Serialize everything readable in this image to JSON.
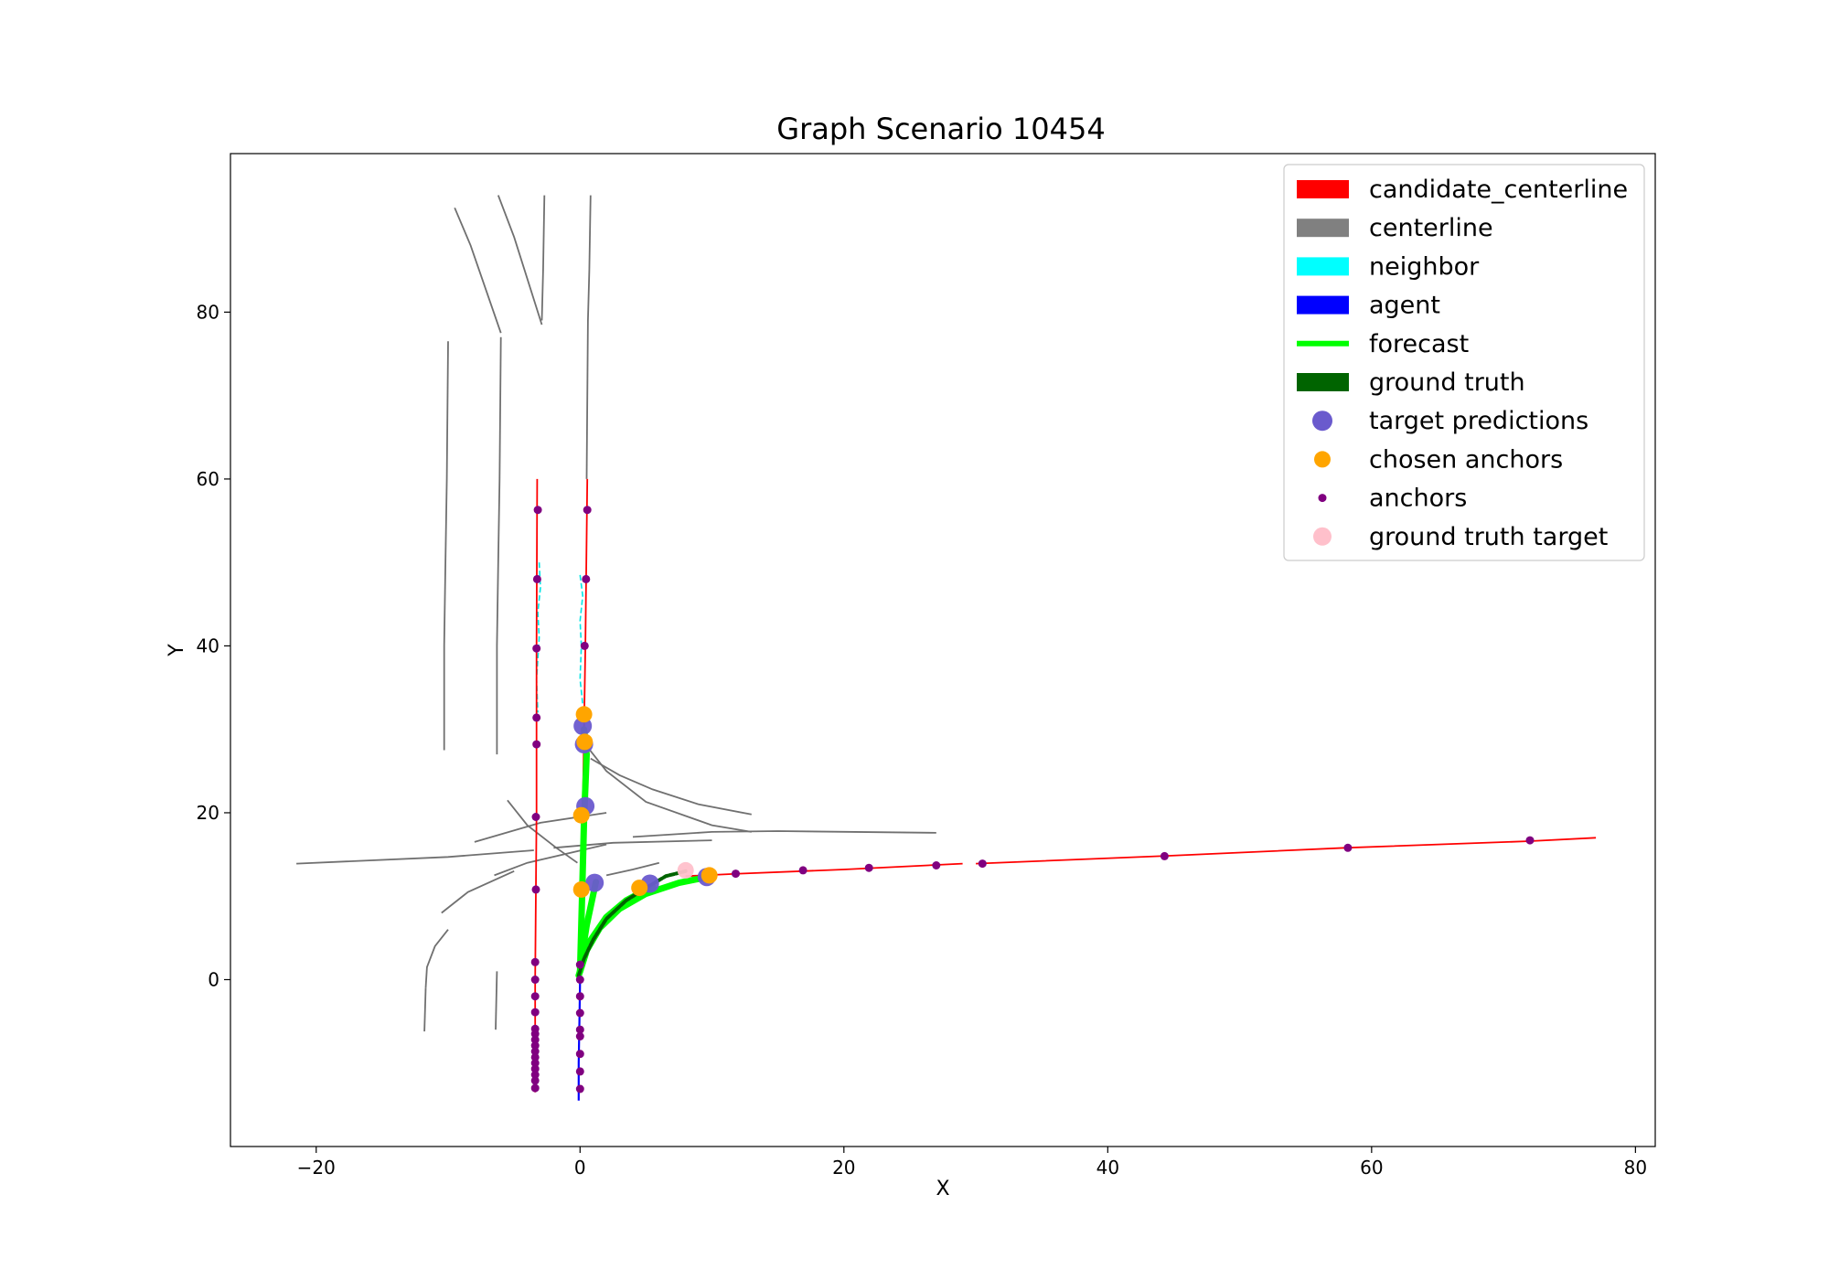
{
  "chart_data": {
    "type": "scatter",
    "title": "Graph Scenario 10454",
    "xlabel": "X",
    "ylabel": "Y",
    "xlim": [
      -26.5,
      81.5
    ],
    "ylim": [
      -20,
      99
    ],
    "xticks": [
      -20,
      0,
      20,
      40,
      60,
      80
    ],
    "yticks": [
      0,
      20,
      40,
      60,
      80
    ],
    "xtick_labels": [
      "−20",
      "0",
      "20",
      "40",
      "60",
      "80"
    ],
    "ytick_labels": [
      "0",
      "20",
      "40",
      "60",
      "80"
    ],
    "grid": false,
    "legend_position": "top-right",
    "legend": [
      {
        "label": "candidate_centerline",
        "kind": "patch",
        "color": "#ff0000"
      },
      {
        "label": "centerline",
        "kind": "patch",
        "color": "#808080"
      },
      {
        "label": "neighbor",
        "kind": "patch",
        "color": "#00ffff"
      },
      {
        "label": "agent",
        "kind": "patch",
        "color": "#0000ff"
      },
      {
        "label": "forecast",
        "kind": "line",
        "color": "#00ff00"
      },
      {
        "label": "ground truth",
        "kind": "patch",
        "color": "#006400"
      },
      {
        "label": "target predictions",
        "kind": "dot",
        "color": "#6a5acd",
        "size": 11
      },
      {
        "label": "chosen anchors",
        "kind": "dot",
        "color": "#ffa500",
        "size": 9
      },
      {
        "label": "anchors",
        "kind": "dot",
        "color": "#800080",
        "size": 4.5
      },
      {
        "label": "ground truth target",
        "kind": "dot",
        "color": "#ffc0cb",
        "size": 10
      }
    ],
    "centerlines": [
      [
        [
          -21.5,
          13.9
        ],
        [
          -10,
          14.7
        ],
        [
          -3.5,
          15.5
        ]
      ],
      [
        [
          -2,
          15.8
        ],
        [
          2.5,
          16.4
        ],
        [
          10,
          16.7
        ]
      ],
      [
        [
          4,
          17.1
        ],
        [
          10,
          17.7
        ],
        [
          15,
          17.8
        ],
        [
          27,
          17.6
        ]
      ],
      [
        [
          -8,
          16.5
        ],
        [
          -3,
          18.8
        ],
        [
          2,
          20
        ]
      ],
      [
        [
          -6.5,
          12.5
        ],
        [
          -4,
          14
        ],
        [
          2,
          16.2
        ]
      ],
      [
        [
          -10.5,
          8
        ],
        [
          -8.5,
          10.5
        ],
        [
          -5,
          13
        ]
      ],
      [
        [
          -10,
          6
        ],
        [
          -11,
          4
        ],
        [
          -11.6,
          1.5
        ],
        [
          -11.7,
          -1
        ]
      ],
      [
        [
          -11.7,
          -1
        ],
        [
          -11.8,
          -6.2
        ]
      ],
      [
        [
          -6.3,
          1
        ],
        [
          -6.4,
          -6
        ]
      ],
      [
        [
          -10,
          76.5
        ],
        [
          -10.1,
          60
        ],
        [
          -10.2,
          50
        ],
        [
          -10.3,
          40
        ],
        [
          -10.3,
          27.5
        ]
      ],
      [
        [
          -6,
          77
        ],
        [
          -6.1,
          60
        ],
        [
          -6.2,
          50
        ],
        [
          -6.3,
          40
        ],
        [
          -6.3,
          27
        ]
      ],
      [
        [
          -9.5,
          92.5
        ],
        [
          -8.3,
          88
        ],
        [
          -6,
          77.5
        ]
      ],
      [
        [
          -6.2,
          94
        ],
        [
          -5,
          89
        ],
        [
          -2.9,
          78.5
        ]
      ],
      [
        [
          -2.7,
          94
        ],
        [
          -2.8,
          85
        ],
        [
          -2.9,
          79
        ]
      ],
      [
        [
          0.8,
          94
        ],
        [
          0.7,
          85
        ],
        [
          0.6,
          79
        ],
        [
          0.5,
          60
        ]
      ],
      [
        [
          -5.5,
          21.5
        ],
        [
          -4,
          18.5
        ],
        [
          -1.8,
          15.8
        ],
        [
          -0.2,
          14
        ]
      ],
      [
        [
          0.5,
          28
        ],
        [
          2,
          25
        ],
        [
          5,
          21.3
        ],
        [
          10,
          18.5
        ],
        [
          13,
          17.7
        ]
      ],
      [
        [
          0.8,
          26.5
        ],
        [
          3,
          24.5
        ],
        [
          5.5,
          22.8
        ],
        [
          9,
          21
        ],
        [
          13,
          19.8
        ]
      ],
      [
        [
          2,
          12.5
        ],
        [
          4,
          13.2
        ],
        [
          6,
          14
        ]
      ]
    ],
    "candidate_centerlines": [
      [
        [
          -3.25,
          60
        ],
        [
          -3.3,
          40
        ],
        [
          -3.3,
          20
        ],
        [
          -3.4,
          0
        ],
        [
          -3.4,
          -13.5
        ]
      ],
      [
        [
          0.55,
          60
        ],
        [
          0.4,
          40
        ],
        [
          0.2,
          20
        ],
        [
          0.1,
          5
        ]
      ],
      [
        [
          8,
          12.4
        ],
        [
          12,
          12.7
        ],
        [
          20,
          13.2
        ],
        [
          29,
          13.9
        ]
      ],
      [
        [
          30,
          13.9
        ],
        [
          44,
          14.8
        ],
        [
          58,
          15.8
        ],
        [
          72,
          16.6
        ],
        [
          77,
          17
        ]
      ]
    ],
    "neighbors": [
      [
        [
          -3.1,
          50
        ],
        [
          -3.0,
          47
        ],
        [
          -3.2,
          44
        ],
        [
          -3.1,
          41
        ],
        [
          -3.3,
          36
        ],
        [
          -3.2,
          32
        ]
      ],
      [
        [
          0.0,
          48.5
        ],
        [
          0.2,
          46
        ],
        [
          0.0,
          43
        ],
        [
          0.1,
          40
        ],
        [
          0.0,
          36
        ],
        [
          0.2,
          33
        ]
      ]
    ],
    "agent": [
      [
        -0.1,
        -14.5
      ],
      [
        -0.1,
        -10
      ],
      [
        -0.05,
        -5
      ],
      [
        0,
        0
      ],
      [
        0.05,
        1.5
      ]
    ],
    "ground_truth": [
      [
        -0.1,
        0.5
      ],
      [
        0.3,
        2.5
      ],
      [
        1,
        4.8
      ],
      [
        2,
        7.3
      ],
      [
        3.5,
        9.5
      ],
      [
        5,
        11
      ],
      [
        6.5,
        12.4
      ],
      [
        8,
        13
      ]
    ],
    "forecasts": [
      [
        [
          0,
          1
        ],
        [
          0.15,
          10
        ],
        [
          0.3,
          19
        ],
        [
          0.5,
          27
        ],
        [
          0.3,
          30
        ]
      ],
      [
        [
          0,
          1.5
        ],
        [
          0.5,
          6.5
        ],
        [
          1.2,
          11.7
        ]
      ],
      [
        [
          0,
          1
        ],
        [
          0.7,
          4.5
        ],
        [
          2,
          7.5
        ],
        [
          3.5,
          9.5
        ],
        [
          5.5,
          11.2
        ]
      ],
      [
        [
          -0.1,
          0.5
        ],
        [
          0.5,
          3.5
        ],
        [
          1.5,
          6.2
        ],
        [
          3,
          8.5
        ],
        [
          5,
          10.3
        ],
        [
          7.5,
          11.6
        ],
        [
          9.7,
          12.3
        ]
      ]
    ],
    "target_predictions": {
      "x": [
        0.2,
        0.3,
        0.4,
        1.1,
        5.3,
        9.6
      ],
      "y": [
        30.4,
        28.2,
        20.8,
        11.6,
        11.5,
        12.3
      ]
    },
    "chosen_anchors": {
      "x": [
        0.3,
        0.35,
        0.1,
        0.1,
        4.5,
        9.8
      ],
      "y": [
        31.8,
        28.5,
        19.7,
        10.8,
        11.0,
        12.5
      ]
    },
    "anchors": {
      "x": [
        -3.2,
        -3.25,
        -3.3,
        -3.3,
        -3.3,
        -3.35,
        -3.35,
        -3.4,
        -3.4,
        -3.4,
        -3.4,
        -3.4,
        -3.4,
        -3.4,
        -3.4,
        -3.4,
        -3.4,
        -3.4,
        -3.4,
        -3.4,
        -3.4,
        -3.4,
        0.55,
        0.45,
        0.35,
        0.0,
        0.0,
        0.0,
        0.0,
        0.0,
        0.0,
        0.0,
        0.0,
        0.0,
        11.8,
        16.9,
        21.9,
        27.0,
        30.5,
        44.3,
        58.2,
        72.0
      ],
      "y": [
        56.3,
        48.0,
        39.7,
        31.4,
        28.2,
        19.5,
        10.8,
        2.1,
        0.0,
        -2.0,
        -3.9,
        -5.9,
        -6.5,
        -7.2,
        -7.9,
        -8.6,
        -9.3,
        -10.0,
        -10.7,
        -11.4,
        -12.1,
        -13.0,
        56.3,
        48.0,
        40.0,
        1.8,
        0.0,
        -2.0,
        -4.0,
        -6.0,
        -6.8,
        -8.9,
        -11.0,
        -13.1,
        12.7,
        13.1,
        13.4,
        13.7,
        13.9,
        14.8,
        15.8,
        16.7
      ]
    },
    "ground_truth_target": {
      "x": [
        8.0
      ],
      "y": [
        13.1
      ]
    }
  }
}
